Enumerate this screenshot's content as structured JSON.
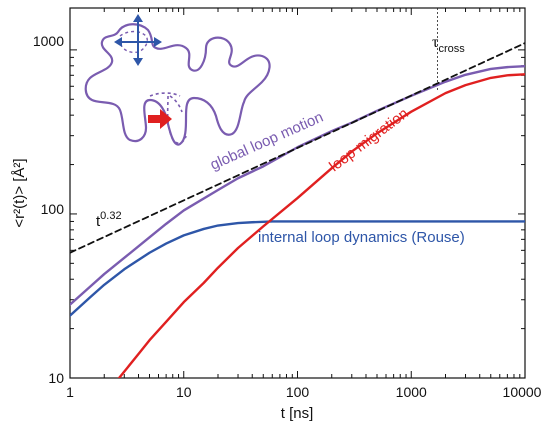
{
  "chart_data": {
    "type": "line",
    "xlabel": "t [ns]",
    "ylabel": "<r²(t)> [Å²]",
    "x_scale": "log",
    "y_scale": "log",
    "xlim": [
      1,
      10000
    ],
    "ylim": [
      10,
      1800
    ],
    "grid": false,
    "x_tick_labels": [
      "1",
      "10",
      "100",
      "1000",
      "10000"
    ],
    "y_tick_labels": [
      "10",
      "100",
      "1000"
    ],
    "series": [
      {
        "name": "global loop motion",
        "color": "#7a5cb0",
        "style": "solid",
        "x": [
          1,
          1.5,
          2,
          3,
          5,
          7,
          10,
          20,
          30,
          50,
          100,
          200,
          300,
          500,
          1000,
          2000,
          3000,
          5000,
          7000,
          10000
        ],
        "y": [
          28,
          36,
          43,
          54,
          72,
          87,
          105,
          140,
          165,
          195,
          255,
          320,
          360,
          425,
          525,
          640,
          705,
          765,
          785,
          795
        ]
      },
      {
        "name": "internal loop dynamics (Rouse)",
        "color": "#2e56a8",
        "style": "solid",
        "x": [
          1,
          1.5,
          2,
          3,
          5,
          7,
          10,
          15,
          20,
          30,
          40,
          60,
          100,
          200,
          1000,
          10000
        ],
        "y": [
          24,
          31,
          37,
          46,
          58,
          66,
          74,
          81,
          85,
          88,
          89,
          90,
          90,
          90,
          90,
          90
        ]
      },
      {
        "name": "loop migration",
        "color": "#e02020",
        "style": "solid",
        "x": [
          2.7,
          4,
          5,
          7,
          10,
          15,
          20,
          30,
          50,
          100,
          200,
          300,
          500,
          1000,
          2000,
          3000,
          5000,
          7000,
          10000
        ],
        "y": [
          10,
          14,
          17,
          22,
          29,
          38,
          47,
          62,
          84,
          125,
          190,
          240,
          310,
          420,
          545,
          610,
          675,
          700,
          710
        ]
      },
      {
        "name": "t^0.32",
        "color": "#111111",
        "style": "dashed",
        "x": [
          1,
          10000
        ],
        "y": [
          58,
          1100
        ]
      }
    ],
    "annotations": {
      "global": "global loop motion",
      "migration": "loop migration",
      "rouse": "internal loop dynamics (Rouse)",
      "power_base": "t",
      "power_exp": "0.32",
      "tau_main": "τ",
      "tau_sub": "cross"
    },
    "tau_cross_x": 1700
  }
}
